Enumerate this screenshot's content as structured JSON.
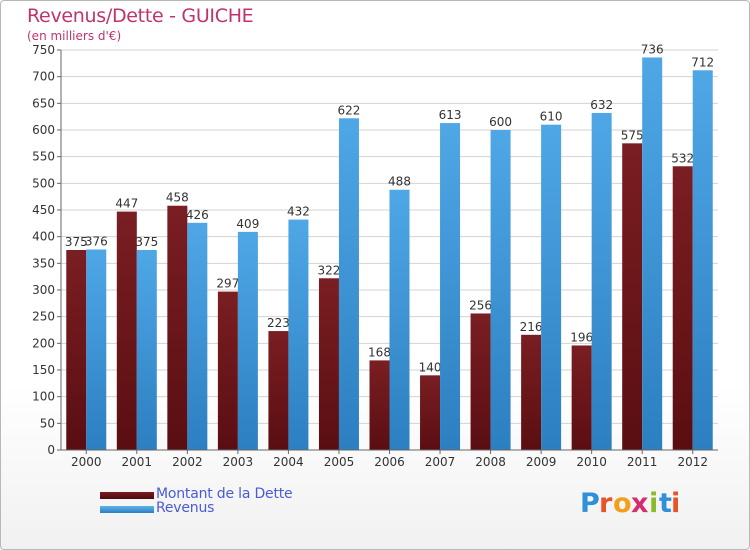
{
  "title": "Revenus/Dette - GUICHE",
  "subtitle": "(en milliers d'€)",
  "brand": "Proxiti",
  "colors": {
    "dette": "#7a1e22",
    "dette_dark": "#5a0e12",
    "revenus": "#4fa7e6",
    "revenus_dark": "#2c7fc0",
    "grid": "#d3d3d3",
    "axis": "#666666"
  },
  "chart_data": {
    "type": "bar",
    "title": "Revenus/Dette - GUICHE",
    "subtitle": "(en milliers d'€)",
    "categories": [
      "2000",
      "2001",
      "2002",
      "2003",
      "2004",
      "2005",
      "2006",
      "2007",
      "2008",
      "2009",
      "2010",
      "2011",
      "2012"
    ],
    "series": [
      {
        "name": "Montant de la Dette",
        "values": [
          375,
          447,
          458,
          297,
          223,
          322,
          168,
          140,
          256,
          216,
          196,
          575,
          532
        ]
      },
      {
        "name": "Revenus",
        "values": [
          376,
          375,
          426,
          409,
          432,
          622,
          488,
          613,
          600,
          610,
          632,
          736,
          712
        ]
      }
    ],
    "ylim": [
      0,
      750
    ],
    "ytick_step": 50,
    "grid": true,
    "legend": "bottom-left"
  }
}
